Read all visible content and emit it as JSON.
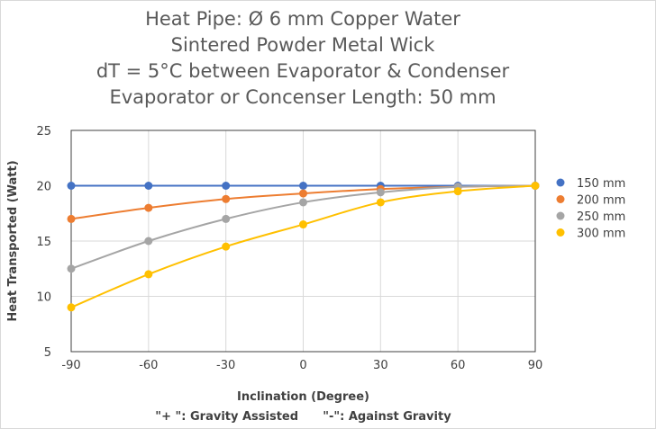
{
  "chart_data": {
    "type": "line",
    "title_lines": [
      "Heat Pipe: Ø 6 mm Copper Water",
      "Sintered Powder Metal Wick",
      "dT = 5°C  between Evaporator & Condenser",
      "Evaporator or Concenser Length: 50 mm"
    ],
    "xlabel": "Inclination (Degree)",
    "xlabel_note": "\"+ \": Gravity Assisted      \"-\": Against Gravity",
    "ylabel": "Heat Transported (Watt)",
    "x": [
      -90,
      -60,
      -30,
      0,
      30,
      60,
      90
    ],
    "xlim": [
      -90,
      90
    ],
    "ylim": [
      5,
      25
    ],
    "x_ticks": [
      -90,
      -60,
      -30,
      0,
      30,
      60,
      90
    ],
    "y_ticks": [
      5,
      10,
      15,
      20,
      25
    ],
    "grid": true,
    "legend_position": "right",
    "series": [
      {
        "name": "150 mm",
        "color": "#4472C4",
        "values": [
          20,
          20,
          20,
          20,
          20,
          20,
          20
        ]
      },
      {
        "name": "200 mm",
        "color": "#ED7D31",
        "values": [
          17,
          18,
          18.8,
          19.3,
          19.7,
          19.9,
          20
        ]
      },
      {
        "name": "250 mm",
        "color": "#A5A5A5",
        "values": [
          12.5,
          15,
          17,
          18.5,
          19.4,
          19.9,
          20
        ]
      },
      {
        "name": "300 mm",
        "color": "#FFC000",
        "values": [
          9,
          12,
          14.5,
          16.5,
          18.5,
          19.5,
          20
        ]
      }
    ]
  }
}
